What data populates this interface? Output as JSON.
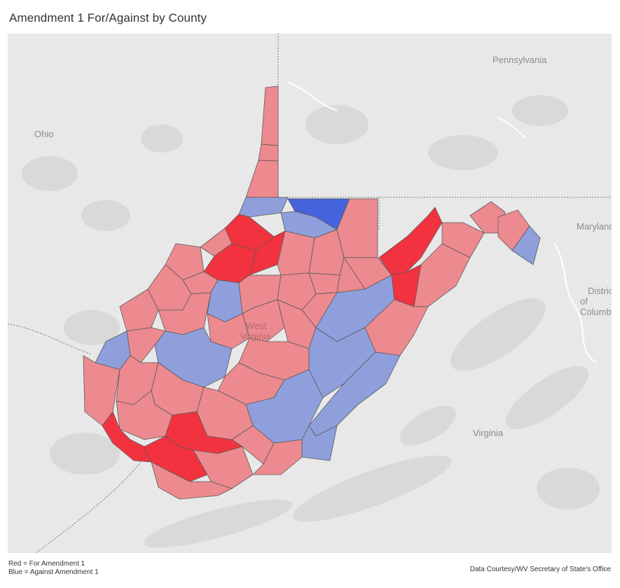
{
  "title": "Amendment 1 For/Against by County",
  "map": {
    "labels": {
      "pennsylvania": "Pennsylvania",
      "ohio": "Ohio",
      "maryland": "Maryland",
      "virginia": "Virginia",
      "west_virginia_line1": "West",
      "west_virginia_line2": "Virginia",
      "dc_line1": "District",
      "dc_line2": "of Columbia"
    },
    "colors": {
      "strong_for": "#f2333f",
      "lean_for": "#ec8a8f",
      "lean_against": "#8f9fdc",
      "strong_against": "#4463dc",
      "base_map": "#e8e8e8",
      "land_shade": "#d6d6d6"
    }
  },
  "legend": {
    "red": "Red = For Amendment 1",
    "blue": "Blue = Against Amendment 1"
  },
  "credit": "Data Courtesy/WV Secretary of State's Office"
}
